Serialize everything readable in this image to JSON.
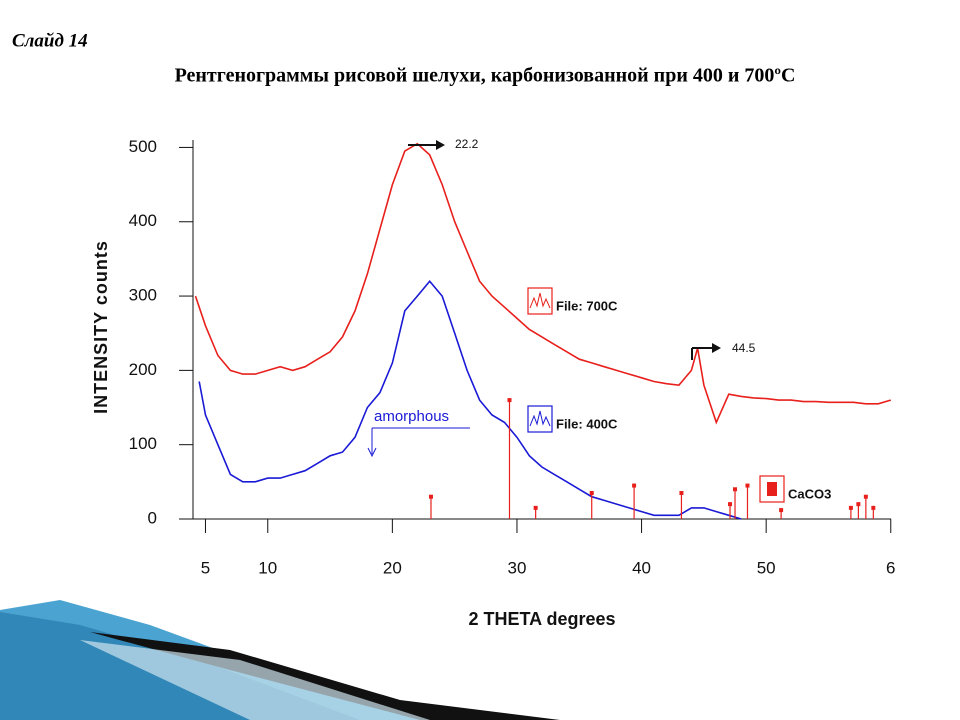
{
  "slide": {
    "label": "Слайд 14",
    "title": "Рентгенограммы рисовой шелухи, карбонизованной при 400 и 700ºС"
  },
  "chart_data": {
    "type": "line",
    "xlabel": "2 THETA  degrees",
    "ylabel": "INTENSITY  counts",
    "xlim": [
      4,
      60.5
    ],
    "ylim": [
      0,
      510
    ],
    "xticks": [
      5,
      10,
      20,
      30,
      40,
      50,
      {
        "value": 60,
        "label": "6"
      }
    ],
    "yticks": [
      0,
      100,
      200,
      300,
      400,
      500
    ],
    "annotations": [
      "22.2",
      "44.5",
      "amorphous"
    ],
    "series": [
      {
        "name": "File: 700C",
        "color": "#e8201c",
        "style": "line",
        "x": [
          4.2,
          5,
          6,
          7,
          8,
          9,
          10,
          11,
          12,
          13,
          14,
          15,
          16,
          17,
          18,
          19,
          20,
          21,
          22,
          23,
          24,
          25,
          26,
          27,
          28,
          29,
          30,
          31,
          32,
          33,
          34,
          35,
          36,
          37,
          38,
          39,
          40,
          41,
          42,
          43,
          44,
          44.5,
          45,
          46,
          47,
          48,
          49,
          50,
          51,
          52,
          53,
          54,
          55,
          56,
          57,
          58,
          59,
          60
        ],
        "values": [
          300,
          260,
          220,
          200,
          195,
          195,
          200,
          205,
          200,
          205,
          215,
          225,
          245,
          280,
          330,
          390,
          450,
          495,
          505,
          490,
          450,
          400,
          360,
          320,
          300,
          285,
          270,
          255,
          245,
          235,
          225,
          215,
          210,
          205,
          200,
          195,
          190,
          185,
          182,
          180,
          200,
          230,
          180,
          130,
          168,
          165,
          163,
          162,
          160,
          160,
          158,
          158,
          157,
          157,
          157,
          155,
          155,
          160
        ]
      },
      {
        "name": "File: 400C",
        "color": "#1a1ad6",
        "style": "line",
        "x": [
          4.5,
          5,
          6,
          7,
          8,
          9,
          10,
          11,
          12,
          13,
          14,
          15,
          16,
          17,
          18,
          19,
          20,
          21,
          22,
          23,
          24,
          25,
          26,
          27,
          28,
          29,
          30,
          31,
          32,
          33,
          34,
          35,
          36,
          37,
          38,
          39,
          40,
          41,
          42,
          43,
          44,
          45,
          46,
          47,
          48
        ],
        "values": [
          185,
          140,
          100,
          60,
          50,
          50,
          55,
          55,
          60,
          65,
          75,
          85,
          90,
          110,
          150,
          170,
          210,
          280,
          300,
          320,
          300,
          250,
          200,
          160,
          140,
          130,
          110,
          85,
          70,
          60,
          50,
          40,
          30,
          25,
          20,
          15,
          10,
          5,
          5,
          5,
          15,
          15,
          10,
          5,
          0
        ]
      },
      {
        "name": "CaCO3",
        "color": "#e8201c",
        "style": "sticks",
        "x": [
          23.1,
          29.4,
          31.5,
          36,
          39.4,
          43.2,
          47.1,
          47.5,
          48.5,
          51.2,
          56.8,
          57.4,
          58,
          58.6
        ],
        "values": [
          30,
          160,
          15,
          35,
          45,
          35,
          20,
          40,
          45,
          12,
          15,
          20,
          30,
          15
        ]
      }
    ]
  }
}
